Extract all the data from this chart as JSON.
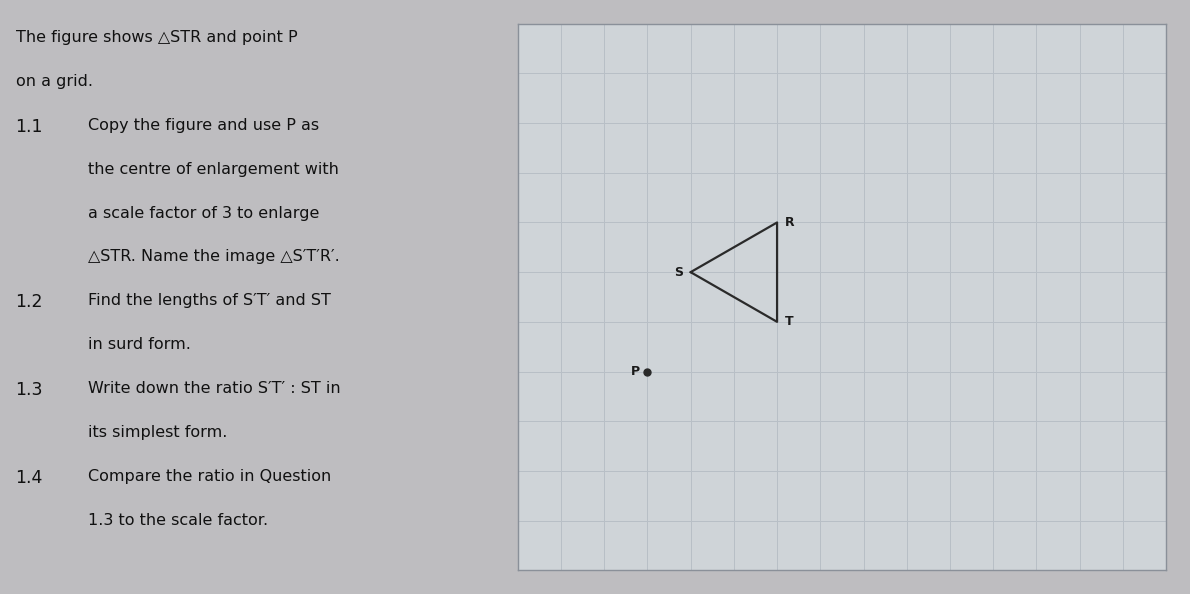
{
  "grid_color": "#b8bfc6",
  "background_color": "#d4d9dd",
  "grid_xlim": [
    0,
    15
  ],
  "grid_ylim": [
    0,
    11
  ],
  "grid_xticks": [
    0,
    1,
    2,
    3,
    4,
    5,
    6,
    7,
    8,
    9,
    10,
    11,
    12,
    13,
    14,
    15
  ],
  "grid_yticks": [
    0,
    1,
    2,
    3,
    4,
    5,
    6,
    7,
    8,
    9,
    10,
    11
  ],
  "S": [
    4,
    6
  ],
  "T": [
    6,
    5
  ],
  "R": [
    6,
    7
  ],
  "P": [
    3,
    4
  ],
  "triangle_color": "#2a2a2a",
  "triangle_linewidth": 1.6,
  "label_fontsize": 9,
  "label_color": "#1a1a1a",
  "point_size": 5,
  "figure_bg": "#bebdc0",
  "left_panel_bg": "#d0cece",
  "right_panel_bg": "#cfd4d8",
  "grid_inner_bg": "#d4d9dd",
  "text_color": "#111111",
  "text_fontsize": 11.5,
  "number_fontsize": 12.5
}
